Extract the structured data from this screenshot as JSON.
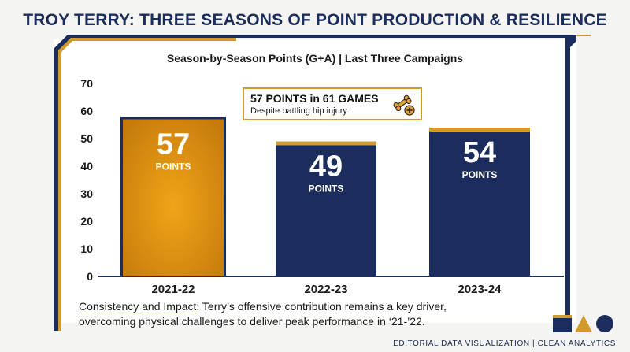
{
  "title": "TROY TERRY: THREE SEASONS OF POINT PRODUCTION & RESILIENCE",
  "subtitle": "Season-by-Season Points (G+A) | Last Three Campaigns",
  "callout": {
    "title": "57 POINTS in 61 GAMES",
    "subtitle": "Despite battling hip injury",
    "icon": "bone-plus-icon"
  },
  "caption": {
    "lead": "Consistency and Impact",
    "line1_rest": ": Terry’s offensive contribution remains a key driver,",
    "line2": "overcoming physical challenges to deliver peak performance in ‘21-’22."
  },
  "footer": "EDITORIAL DATA VISUALIZATION | CLEAN ANALYTICS",
  "colors": {
    "navy": "#1b2d5c",
    "gold": "#d29a2a",
    "highlight_bar": "#e39a14"
  },
  "chart_data": {
    "type": "bar",
    "categories": [
      "2021-22",
      "2022-23",
      "2023-24"
    ],
    "values": [
      57,
      49,
      54
    ],
    "value_unit_label": "POINTS",
    "highlight_index": 0,
    "title": "Season-by-Season Points (G+A) | Last Three Campaigns",
    "xlabel": "",
    "ylabel": "",
    "ylim": [
      0,
      70
    ],
    "yticks": [
      0,
      10,
      20,
      30,
      40,
      50,
      60,
      70
    ],
    "grid": false,
    "legend": "none"
  }
}
